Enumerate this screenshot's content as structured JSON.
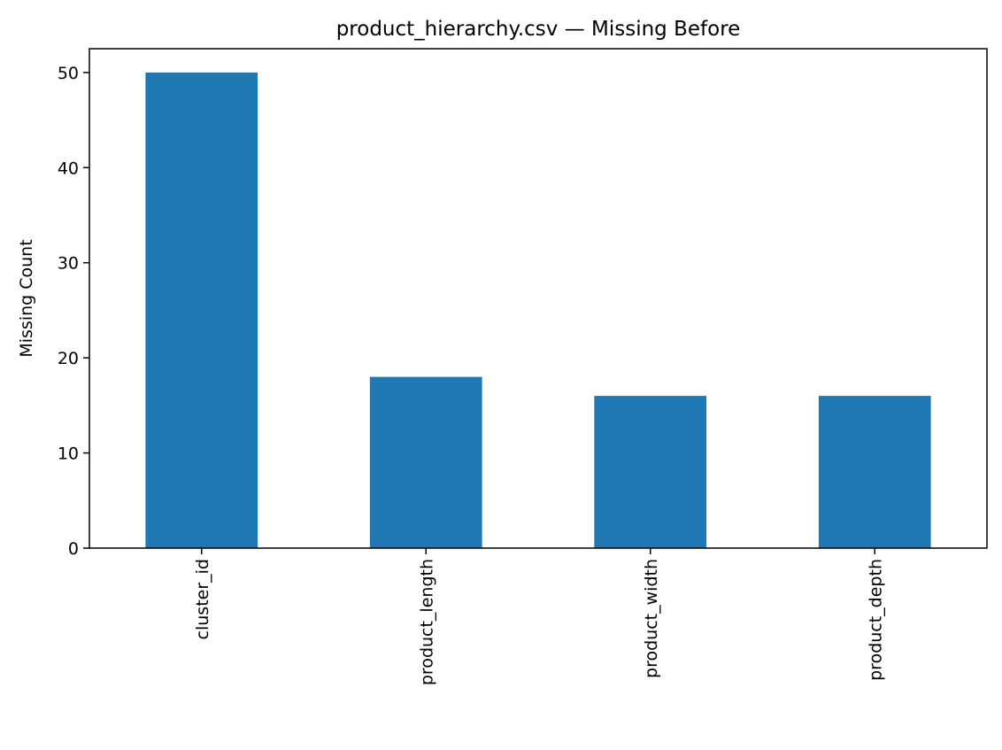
{
  "chart_data": {
    "type": "bar",
    "title": "product_hierarchy.csv — Missing Before",
    "xlabel": "",
    "ylabel": "Missing Count",
    "categories": [
      "cluster_id",
      "product_length",
      "product_width",
      "product_depth"
    ],
    "values": [
      50,
      18,
      16,
      16
    ],
    "ylim": [
      0,
      52.5
    ],
    "yticks": [
      0,
      10,
      20,
      30,
      40,
      50
    ],
    "grid": false,
    "legend": "none",
    "colors": {
      "bar": "#1f77b4",
      "axis": "#000000",
      "background": "#ffffff"
    }
  }
}
